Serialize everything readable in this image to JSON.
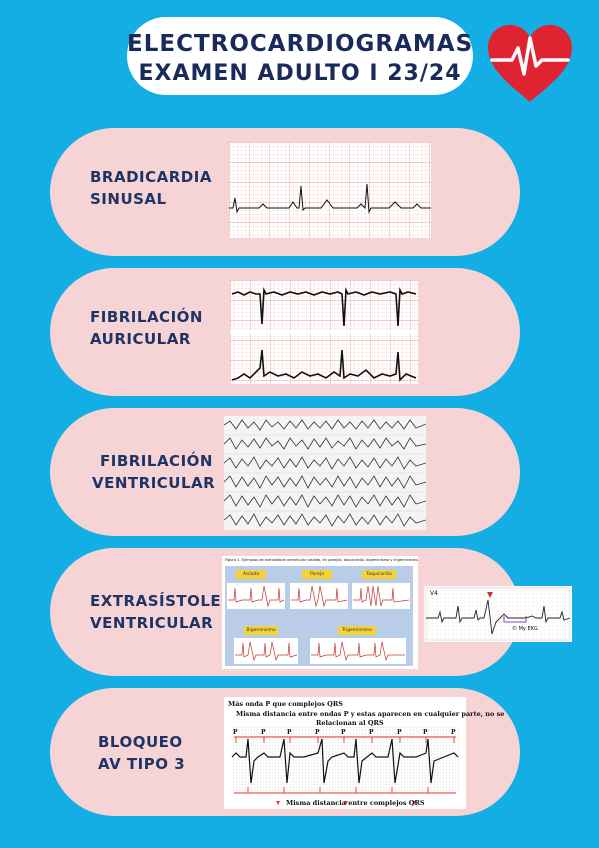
{
  "header": {
    "line1": "ELECTROCARDIOGRAMAS",
    "line2": "EXAMEN ADULTO I 23/24"
  },
  "colors": {
    "background": "#13aee3",
    "card": "#f6d4d6",
    "text": "#1f3466",
    "heart": "#e02330"
  },
  "icons": {
    "heart": "heart-pulse-icon"
  },
  "cards": [
    {
      "line1": "BRADICARDIA",
      "line2": "SINUSAL"
    },
    {
      "line1": "FIBRILACIÓN",
      "line2": "AURICULAR"
    },
    {
      "line1": "FIBRILACIÓN",
      "line2": "VENTRICULAR"
    },
    {
      "line1": "EXTRASÍSTOLE",
      "line2": "VENTRICULAR"
    },
    {
      "line1": "BLOQUEO",
      "line2": "AV TIPO 3"
    }
  ],
  "extrasistole_figure": {
    "caption": "Figura 1. Ejemplos de extrasístole ventricular aislada, en parejas, taquicardia, bigeminismo y trigeminismo.",
    "tags": [
      "Aislada",
      "Pareja",
      "Taquicardia",
      "Bigeminismo",
      "Trigeminismo"
    ],
    "lead": "V4",
    "credit": "© My EKG"
  },
  "bloqueo_figure": {
    "note1": "Más onda P que complejos QRS",
    "note2": "Misma distancia entre ondas P y estas aparecen en cualquier parte, no se",
    "note3": "Relacionan al QRS",
    "p_label": "P",
    "bottom_note": "Misma distancia entre complejos QRS"
  }
}
